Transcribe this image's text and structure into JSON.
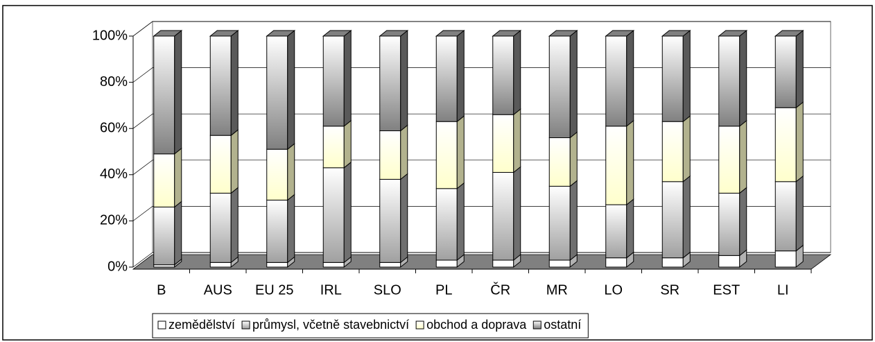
{
  "chart_data": {
    "type": "bar",
    "stacked": true,
    "categories": [
      "B",
      "AUS",
      "EU 25",
      "IRL",
      "SLO",
      "PL",
      "ČR",
      "MR",
      "LO",
      "SR",
      "EST",
      "LI"
    ],
    "series": [
      {
        "name": "zemědělství",
        "color": "#ffffff",
        "values": [
          1,
          2,
          2,
          2,
          2,
          3,
          3,
          3,
          4,
          4,
          5,
          7
        ]
      },
      {
        "name": "průmysl, včetně stavebnictví",
        "color": "#a0a0a0",
        "values": [
          25,
          30,
          27,
          41,
          36,
          31,
          38,
          32,
          23,
          33,
          27,
          30
        ]
      },
      {
        "name": "obchod a doprava",
        "color": "#ffffcc",
        "values": [
          23,
          25,
          22,
          18,
          21,
          29,
          25,
          21,
          34,
          26,
          29,
          32
        ]
      },
      {
        "name": "ostatní",
        "color": "#808080",
        "values": [
          51,
          43,
          49,
          39,
          41,
          37,
          34,
          44,
          39,
          37,
          39,
          31
        ]
      }
    ],
    "ylim": [
      0,
      100
    ],
    "yticks": [
      {
        "value": 0,
        "label": "0%"
      },
      {
        "value": 20,
        "label": "20%"
      },
      {
        "value": 40,
        "label": "40%"
      },
      {
        "value": 60,
        "label": "60%"
      },
      {
        "value": 80,
        "label": "80%"
      },
      {
        "value": 100,
        "label": "100%"
      }
    ],
    "grid": true,
    "legend": "bottom"
  }
}
